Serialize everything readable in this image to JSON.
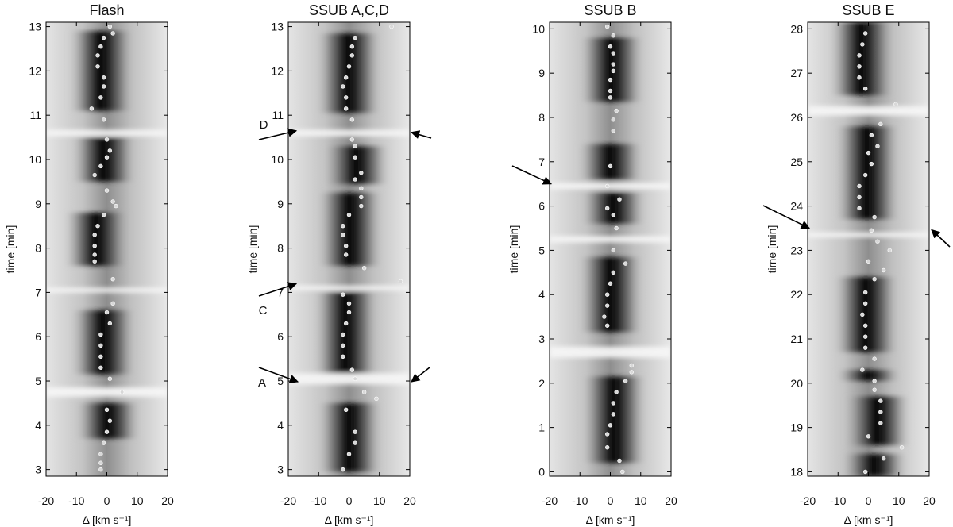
{
  "chart_data": [
    {
      "type": "heatmap",
      "title": "Flash",
      "xlabel": "Δ [km s⁻¹]",
      "ylabel": "time [min]",
      "xlim": [
        -20,
        20
      ],
      "ylim": [
        2.85,
        13.1
      ],
      "xticks": [
        -20,
        -10,
        0,
        10,
        20
      ],
      "yticks": [
        3,
        4,
        5,
        6,
        7,
        8,
        9,
        10,
        11,
        12,
        13
      ],
      "colormap": "grayscale",
      "points": [
        {
          "x": -2,
          "y": 3.0
        },
        {
          "x": -2,
          "y": 3.15
        },
        {
          "x": -2,
          "y": 3.35
        },
        {
          "x": -1,
          "y": 3.6
        },
        {
          "x": 0,
          "y": 3.85
        },
        {
          "x": 1,
          "y": 4.1
        },
        {
          "x": 0,
          "y": 4.35
        },
        {
          "x": 5,
          "y": 4.75
        },
        {
          "x": 1,
          "y": 5.05
        },
        {
          "x": -2,
          "y": 5.3
        },
        {
          "x": -2,
          "y": 5.55
        },
        {
          "x": -2,
          "y": 5.8
        },
        {
          "x": -2,
          "y": 6.05
        },
        {
          "x": 1,
          "y": 6.3
        },
        {
          "x": 0,
          "y": 6.55
        },
        {
          "x": 2,
          "y": 6.75
        },
        {
          "x": 2,
          "y": 7.3
        },
        {
          "x": -4,
          "y": 7.7
        },
        {
          "x": -4,
          "y": 7.85
        },
        {
          "x": -4,
          "y": 8.05
        },
        {
          "x": -4,
          "y": 8.3
        },
        {
          "x": -3,
          "y": 8.5
        },
        {
          "x": -1,
          "y": 8.75
        },
        {
          "x": 3,
          "y": 8.95
        },
        {
          "x": 2,
          "y": 9.05
        },
        {
          "x": 0,
          "y": 9.3
        },
        {
          "x": -4,
          "y": 9.65
        },
        {
          "x": -2,
          "y": 9.85
        },
        {
          "x": 0,
          "y": 10.05
        },
        {
          "x": 1,
          "y": 10.2
        },
        {
          "x": 0,
          "y": 10.45
        },
        {
          "x": -1,
          "y": 10.9
        },
        {
          "x": -5,
          "y": 11.15
        },
        {
          "x": -2,
          "y": 11.4
        },
        {
          "x": -1,
          "y": 11.65
        },
        {
          "x": -1,
          "y": 11.85
        },
        {
          "x": -3,
          "y": 12.1
        },
        {
          "x": -3,
          "y": 12.35
        },
        {
          "x": -2,
          "y": 12.55
        },
        {
          "x": -1,
          "y": 12.75
        },
        {
          "x": 2,
          "y": 12.85
        },
        {
          "x": 1,
          "y": 13.0
        }
      ],
      "dark_bands": [
        [
          3.7,
          4.5
        ],
        [
          5.15,
          6.6
        ],
        [
          7.6,
          8.8
        ],
        [
          9.5,
          10.5
        ],
        [
          11.1,
          12.9
        ]
      ],
      "bright_bands": [
        [
          4.75,
          0.12
        ],
        [
          7.05,
          0.06
        ],
        [
          10.6,
          0.08
        ]
      ],
      "annotations": []
    },
    {
      "type": "heatmap",
      "title": "SSUB A,C,D",
      "xlabel": "Δ [km s⁻¹]",
      "ylabel": "time [min]",
      "xlim": [
        -20,
        20
      ],
      "ylim": [
        2.85,
        13.1
      ],
      "xticks": [
        -20,
        -10,
        0,
        10,
        20
      ],
      "yticks": [
        3,
        4,
        5,
        6,
        7,
        8,
        9,
        10,
        11,
        12,
        13
      ],
      "colormap": "grayscale",
      "points": [
        {
          "x": -2,
          "y": 3.0
        },
        {
          "x": 0,
          "y": 3.35
        },
        {
          "x": 2,
          "y": 3.6
        },
        {
          "x": 2,
          "y": 3.85
        },
        {
          "x": -1,
          "y": 4.35
        },
        {
          "x": 9,
          "y": 4.6
        },
        {
          "x": 5,
          "y": 4.75
        },
        {
          "x": 2,
          "y": 5.05
        },
        {
          "x": 1,
          "y": 5.25
        },
        {
          "x": -2,
          "y": 5.55
        },
        {
          "x": -2,
          "y": 5.8
        },
        {
          "x": -2,
          "y": 6.05
        },
        {
          "x": -1,
          "y": 6.3
        },
        {
          "x": 0,
          "y": 6.55
        },
        {
          "x": 0,
          "y": 6.75
        },
        {
          "x": -2,
          "y": 6.95
        },
        {
          "x": 5,
          "y": 7.55
        },
        {
          "x": 17,
          "y": 7.25
        },
        {
          "x": -1,
          "y": 7.85
        },
        {
          "x": -1,
          "y": 8.05
        },
        {
          "x": -2,
          "y": 8.3
        },
        {
          "x": -2,
          "y": 8.5
        },
        {
          "x": 0,
          "y": 8.75
        },
        {
          "x": 4,
          "y": 8.95
        },
        {
          "x": 4,
          "y": 9.15
        },
        {
          "x": 4,
          "y": 9.35
        },
        {
          "x": 2,
          "y": 9.55
        },
        {
          "x": 4,
          "y": 9.7
        },
        {
          "x": 2,
          "y": 10.05
        },
        {
          "x": 2,
          "y": 10.3
        },
        {
          "x": 1,
          "y": 10.45
        },
        {
          "x": 1,
          "y": 10.9
        },
        {
          "x": -1,
          "y": 11.15
        },
        {
          "x": -1,
          "y": 11.4
        },
        {
          "x": -2,
          "y": 11.65
        },
        {
          "x": -1,
          "y": 11.85
        },
        {
          "x": 0,
          "y": 12.1
        },
        {
          "x": 1,
          "y": 12.35
        },
        {
          "x": 1,
          "y": 12.55
        },
        {
          "x": 2,
          "y": 12.75
        },
        {
          "x": 14,
          "y": 13.0
        }
      ],
      "dark_bands": [
        [
          2.95,
          4.5
        ],
        [
          5.15,
          7.0
        ],
        [
          7.6,
          9.25
        ],
        [
          9.45,
          10.3
        ],
        [
          11.05,
          12.85
        ]
      ],
      "bright_bands": [
        [
          5.05,
          0.14
        ],
        [
          7.1,
          0.06
        ],
        [
          10.6,
          0.08
        ]
      ],
      "annotations": [
        {
          "label": "A",
          "time": 5.0
        },
        {
          "label": "C",
          "time": 7.25
        },
        {
          "label": "D",
          "time": 10.65
        }
      ]
    },
    {
      "type": "heatmap",
      "title": "SSUB B",
      "xlabel": "Δ [km s⁻¹]",
      "ylabel": "time [min]",
      "xlim": [
        -20,
        20
      ],
      "ylim": [
        -0.1,
        10.15
      ],
      "xticks": [
        -20,
        -10,
        0,
        10,
        20
      ],
      "yticks": [
        0,
        1,
        2,
        3,
        4,
        5,
        6,
        7,
        8,
        9,
        10
      ],
      "colormap": "grayscale",
      "points": [
        {
          "x": 4,
          "y": 0.0
        },
        {
          "x": 3,
          "y": 0.25
        },
        {
          "x": -1,
          "y": 0.55
        },
        {
          "x": -1,
          "y": 0.85
        },
        {
          "x": 0,
          "y": 1.05
        },
        {
          "x": 1,
          "y": 1.3
        },
        {
          "x": 1,
          "y": 1.55
        },
        {
          "x": 2,
          "y": 1.8
        },
        {
          "x": 5,
          "y": 2.05
        },
        {
          "x": 7,
          "y": 2.25
        },
        {
          "x": 7,
          "y": 2.4
        },
        {
          "x": -1,
          "y": 3.3
        },
        {
          "x": -2,
          "y": 3.5
        },
        {
          "x": -1,
          "y": 3.75
        },
        {
          "x": -1,
          "y": 4.0
        },
        {
          "x": 0,
          "y": 4.25
        },
        {
          "x": 1,
          "y": 4.5
        },
        {
          "x": 5,
          "y": 4.7
        },
        {
          "x": 1,
          "y": 5.0
        },
        {
          "x": 2,
          "y": 5.5
        },
        {
          "x": 1,
          "y": 5.8
        },
        {
          "x": -1,
          "y": 5.95
        },
        {
          "x": 3,
          "y": 6.15
        },
        {
          "x": -1,
          "y": 6.45
        },
        {
          "x": 0,
          "y": 6.9
        },
        {
          "x": 1,
          "y": 7.7
        },
        {
          "x": 1,
          "y": 7.95
        },
        {
          "x": 2,
          "y": 8.15
        },
        {
          "x": 0,
          "y": 8.45
        },
        {
          "x": 0,
          "y": 8.6
        },
        {
          "x": 0,
          "y": 8.85
        },
        {
          "x": 1,
          "y": 9.05
        },
        {
          "x": 1,
          "y": 9.2
        },
        {
          "x": 1,
          "y": 9.45
        },
        {
          "x": 0,
          "y": 9.6
        },
        {
          "x": 1,
          "y": 9.85
        },
        {
          "x": -1,
          "y": 10.05
        }
      ],
      "dark_bands": [
        [
          0.2,
          2.15
        ],
        [
          3.15,
          4.85
        ],
        [
          5.6,
          6.3
        ],
        [
          6.6,
          7.4
        ],
        [
          8.35,
          9.8
        ]
      ],
      "bright_bands": [
        [
          2.7,
          0.14
        ],
        [
          5.25,
          0.08
        ],
        [
          6.45,
          0.08
        ]
      ],
      "annotations": [
        {
          "label": "",
          "time": 6.5
        }
      ]
    },
    {
      "type": "heatmap",
      "title": "SSUB E",
      "xlabel": "Δ [km s⁻¹]",
      "ylabel": "time [min]",
      "xlim": [
        -20,
        20
      ],
      "ylim": [
        17.9,
        28.15
      ],
      "xticks": [
        -20,
        -10,
        0,
        10,
        20
      ],
      "yticks": [
        18,
        19,
        20,
        21,
        22,
        23,
        24,
        25,
        26,
        27,
        28
      ],
      "colormap": "grayscale",
      "points": [
        {
          "x": -1,
          "y": 18.0
        },
        {
          "x": 5,
          "y": 18.3
        },
        {
          "x": 11,
          "y": 18.55
        },
        {
          "x": 0,
          "y": 18.8
        },
        {
          "x": 4,
          "y": 19.1
        },
        {
          "x": 4,
          "y": 19.35
        },
        {
          "x": 4,
          "y": 19.6
        },
        {
          "x": 2,
          "y": 19.85
        },
        {
          "x": 2,
          "y": 20.05
        },
        {
          "x": -2,
          "y": 20.3
        },
        {
          "x": 2,
          "y": 20.55
        },
        {
          "x": -1,
          "y": 20.8
        },
        {
          "x": -1,
          "y": 21.05
        },
        {
          "x": -1,
          "y": 21.3
        },
        {
          "x": -2,
          "y": 21.55
        },
        {
          "x": -1,
          "y": 21.8
        },
        {
          "x": -1,
          "y": 22.05
        },
        {
          "x": 2,
          "y": 22.35
        },
        {
          "x": 5,
          "y": 22.55
        },
        {
          "x": 0,
          "y": 22.75
        },
        {
          "x": 7,
          "y": 23.0
        },
        {
          "x": 3,
          "y": 23.2
        },
        {
          "x": 1,
          "y": 23.45
        },
        {
          "x": 2,
          "y": 23.75
        },
        {
          "x": -3,
          "y": 23.95
        },
        {
          "x": -3,
          "y": 24.2
        },
        {
          "x": -3,
          "y": 24.45
        },
        {
          "x": -1,
          "y": 24.7
        },
        {
          "x": 1,
          "y": 24.95
        },
        {
          "x": 0,
          "y": 25.2
        },
        {
          "x": 3,
          "y": 25.35
        },
        {
          "x": 1,
          "y": 25.6
        },
        {
          "x": 4,
          "y": 25.85
        },
        {
          "x": 9,
          "y": 26.3
        },
        {
          "x": -1,
          "y": 26.65
        },
        {
          "x": -3,
          "y": 26.9
        },
        {
          "x": -3,
          "y": 27.15
        },
        {
          "x": -3,
          "y": 27.4
        },
        {
          "x": -2,
          "y": 27.65
        },
        {
          "x": -1,
          "y": 27.9
        }
      ],
      "dark_bands": [
        [
          17.9,
          18.4
        ],
        [
          18.6,
          19.7
        ],
        [
          20.05,
          20.3
        ],
        [
          20.7,
          22.4
        ],
        [
          23.7,
          25.8
        ],
        [
          26.5,
          28.15
        ]
      ],
      "bright_bands": [
        [
          26.15,
          0.12
        ],
        [
          23.35,
          0.06
        ]
      ],
      "annotations": [
        {
          "label": "",
          "time": 23.5
        }
      ]
    }
  ]
}
